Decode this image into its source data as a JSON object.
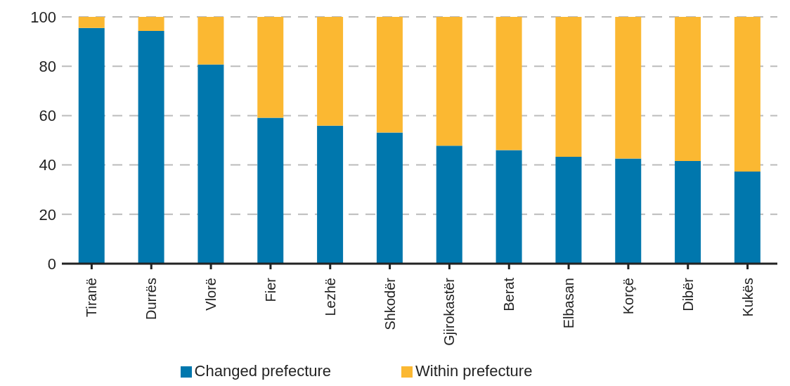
{
  "chart_data": {
    "type": "bar",
    "stacked": true,
    "categories": [
      "Tiranë",
      "Durrës",
      "Vlorë",
      "Fier",
      "Lezhë",
      "Shkodër",
      "Gjirokastër",
      "Berat",
      "Elbasan",
      "Korçë",
      "Dibër",
      "Kukës"
    ],
    "series": [
      {
        "name": "Changed prefecture",
        "color": "#0077ad",
        "values": [
          95.5,
          94.3,
          80.7,
          59.1,
          55.9,
          53.1,
          47.8,
          46.0,
          43.3,
          42.6,
          41.6,
          37.3
        ]
      },
      {
        "name": "Within prefecture",
        "color": "#fbb832",
        "values": [
          4.5,
          5.7,
          19.3,
          40.9,
          44.1,
          46.9,
          52.2,
          54.0,
          56.7,
          57.4,
          58.4,
          62.7
        ]
      }
    ],
    "ylim": [
      0,
      100
    ],
    "yticks": [
      0,
      20,
      40,
      60,
      80,
      100
    ],
    "grid": "y",
    "legend": "bottom"
  }
}
